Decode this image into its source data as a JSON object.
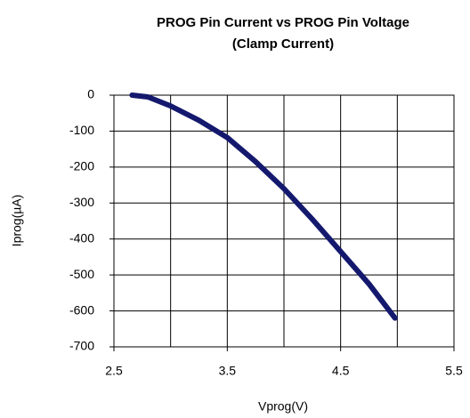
{
  "chart_data": {
    "type": "line",
    "title": [
      "PROG Pin Current vs PROG Pin Voltage",
      "(Clamp Current)"
    ],
    "x_label": "Vprog(V)",
    "y_label": "Iprog(µA)",
    "x": [
      2.66,
      2.8,
      3.0,
      3.25,
      3.5,
      3.75,
      4.0,
      4.25,
      4.5,
      4.75,
      4.98
    ],
    "series": [
      {
        "name": "Iprog",
        "color": "#14196e",
        "values": [
          0,
          -5,
          -30,
          -70,
          -118,
          -185,
          -260,
          -345,
          -435,
          -525,
          -620
        ]
      }
    ],
    "xlim": [
      2.5,
      5.5
    ],
    "xticks": [
      2.5,
      3.5,
      4.5,
      5.5
    ],
    "x_minor_grid": [
      3,
      4,
      5
    ],
    "ylim": [
      -700,
      0
    ],
    "yticks": [
      0,
      -100,
      -200,
      -300,
      -400,
      -500,
      -600,
      -700
    ],
    "grid": true
  }
}
